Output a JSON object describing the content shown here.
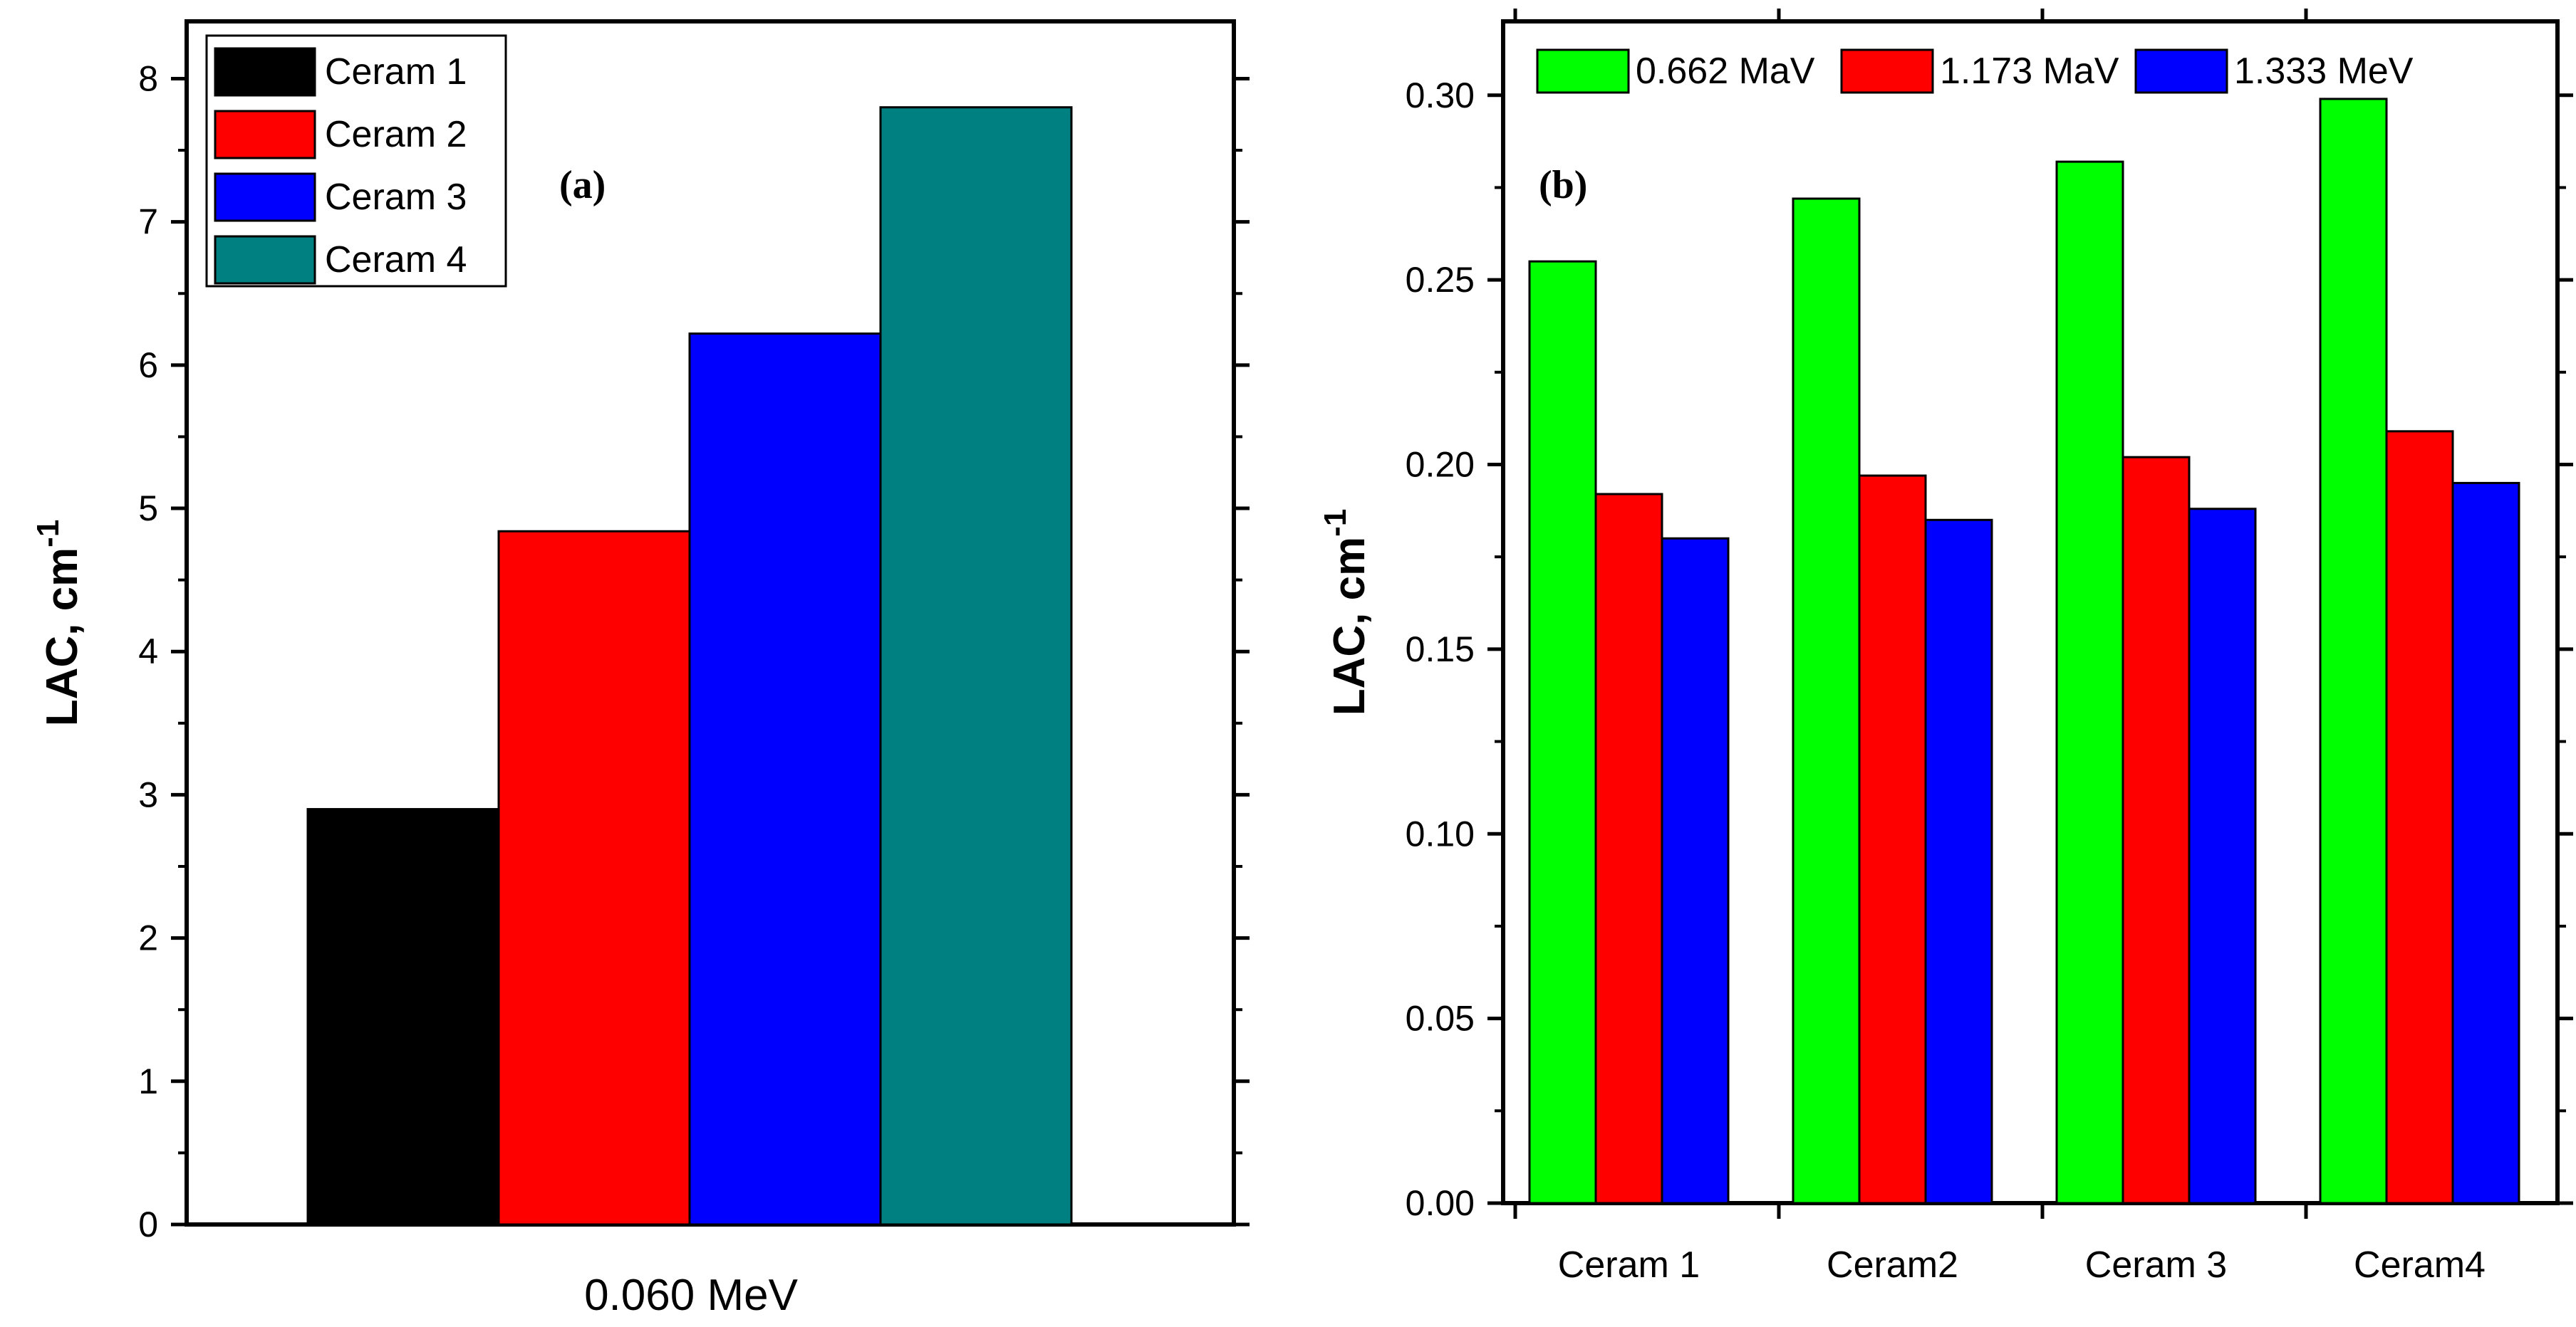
{
  "chart_data": [
    {
      "type": "bar",
      "panel_label": "(a)",
      "title": "",
      "xlabel": "0.060 MeV",
      "ylabel": "LAC, cm",
      "ylabel_superscript": "-1",
      "ylim": [
        0,
        8.4
      ],
      "yticks": [
        0,
        1,
        2,
        3,
        4,
        5,
        6,
        7,
        8
      ],
      "legend_position": "top-left",
      "series": [
        {
          "name": "Ceram 1",
          "value": 2.9,
          "color": "#000000"
        },
        {
          "name": "Ceram 2",
          "value": 4.84,
          "color": "#ff0000"
        },
        {
          "name": "Ceram 3",
          "value": 6.22,
          "color": "#0000ff"
        },
        {
          "name": "Ceram 4",
          "value": 7.8,
          "color": "#008080"
        }
      ]
    },
    {
      "type": "bar",
      "panel_label": "(b)",
      "title": "",
      "xlabel": "",
      "ylabel": "LAC, cm",
      "ylabel_superscript": "-1",
      "ylim": [
        0,
        0.32
      ],
      "yticks": [
        "0.00",
        "0.05",
        "0.10",
        "0.15",
        "0.20",
        "0.25",
        "0.30"
      ],
      "legend_position": "top",
      "categories": [
        "Ceram 1",
        "Ceram2",
        "Ceram 3",
        "Ceram4"
      ],
      "series": [
        {
          "name": "0.662 MaV",
          "color": "#00ff00",
          "values": [
            0.255,
            0.272,
            0.282,
            0.299
          ]
        },
        {
          "name": "1.173 MaV",
          "color": "#ff0000",
          "values": [
            0.192,
            0.197,
            0.202,
            0.209
          ]
        },
        {
          "name": "1.333 MeV",
          "color": "#0000ff",
          "values": [
            0.18,
            0.185,
            0.188,
            0.195
          ]
        }
      ]
    }
  ]
}
